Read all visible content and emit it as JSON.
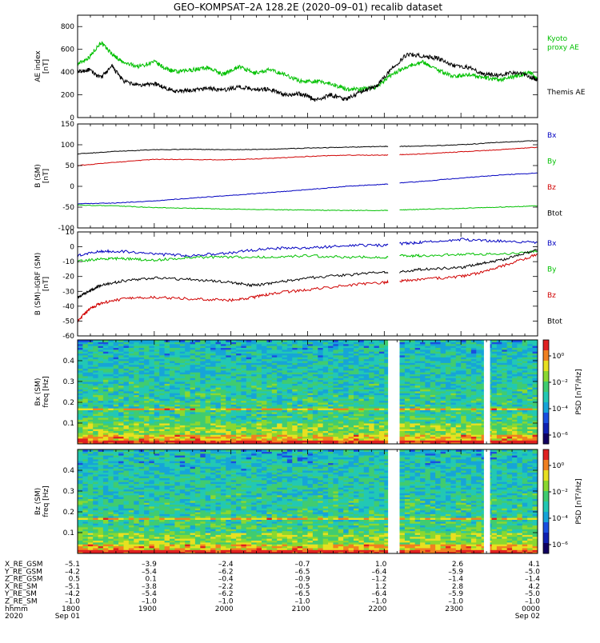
{
  "title": "GEO–KOMPSAT–2A 128.2E (2020–09–01) recalib dataset",
  "colors": {
    "black": "#000000",
    "red": "#d00000",
    "green": "#00c000",
    "blue": "#0000c0",
    "light_green": "#30e030"
  },
  "chart_data": [
    {
      "type": "line",
      "panel": "ae",
      "ylabel": [
        "AE index",
        "[nT]"
      ],
      "ylim": [
        0,
        900
      ],
      "yticks": [
        0,
        200,
        400,
        600,
        800
      ],
      "x_hours": [
        18,
        24
      ],
      "series": [
        {
          "name": "Kyoto proxy AE",
          "label_lines": [
            "Kyoto",
            "proxy AE"
          ],
          "color": "green",
          "x": [
            18.0,
            18.15,
            18.3,
            18.45,
            18.6,
            18.8,
            19.0,
            19.15,
            19.3,
            19.5,
            19.7,
            19.9,
            20.1,
            20.3,
            20.5,
            20.7,
            20.9,
            21.1,
            21.3,
            21.5,
            21.7,
            21.9,
            22.1,
            22.3,
            22.5,
            22.7,
            22.9,
            23.1,
            23.3,
            23.5,
            23.7,
            23.9,
            24.0
          ],
          "y": [
            470,
            530,
            660,
            560,
            480,
            450,
            490,
            430,
            400,
            420,
            440,
            380,
            450,
            390,
            420,
            380,
            320,
            320,
            300,
            250,
            250,
            270,
            380,
            450,
            490,
            420,
            360,
            380,
            350,
            330,
            360,
            400,
            330
          ]
        },
        {
          "name": "Themis AE",
          "label_lines": [
            "Themis AE"
          ],
          "color": "black",
          "x": [
            18.0,
            18.15,
            18.3,
            18.45,
            18.6,
            18.8,
            19.0,
            19.15,
            19.3,
            19.5,
            19.7,
            19.9,
            20.1,
            20.3,
            20.5,
            20.7,
            20.9,
            21.0,
            21.1,
            21.3,
            21.5,
            21.7,
            21.9,
            22.1,
            22.3,
            22.5,
            22.7,
            22.9,
            23.1,
            23.3,
            23.5,
            23.7,
            23.9,
            24.0
          ],
          "y": [
            400,
            420,
            350,
            450,
            320,
            280,
            300,
            260,
            230,
            240,
            260,
            240,
            270,
            250,
            250,
            200,
            210,
            190,
            150,
            200,
            160,
            230,
            280,
            430,
            560,
            540,
            520,
            460,
            440,
            380,
            370,
            400,
            360,
            330
          ]
        }
      ]
    },
    {
      "type": "line",
      "panel": "b_sm",
      "ylabel": [
        "B (SM)",
        "[nT]"
      ],
      "ylim": [
        -100,
        150
      ],
      "yticks": [
        -100,
        -50,
        0,
        50,
        100,
        150
      ],
      "gaps": [
        [
          22.05,
          22.2
        ]
      ],
      "series": [
        {
          "name": "Bx",
          "color": "blue",
          "x": [
            18.0,
            18.5,
            19.0,
            19.5,
            20.0,
            20.5,
            21.0,
            21.5,
            22.0,
            22.2,
            22.5,
            23.0,
            23.5,
            24.0
          ],
          "y": [
            -42,
            -40,
            -35,
            -28,
            -22,
            -15,
            -8,
            0,
            5,
            8,
            12,
            20,
            27,
            32
          ]
        },
        {
          "name": "By",
          "color": "green",
          "x": [
            18.0,
            18.5,
            19.0,
            19.5,
            20.0,
            20.5,
            21.0,
            21.5,
            22.0,
            22.2,
            22.5,
            23.0,
            23.5,
            24.0
          ],
          "y": [
            -45,
            -47,
            -51,
            -53,
            -55,
            -56,
            -57,
            -58,
            -58,
            -57,
            -55,
            -53,
            -50,
            -47
          ]
        },
        {
          "name": "Bz",
          "color": "red",
          "x": [
            18.0,
            18.5,
            19.0,
            19.5,
            20.0,
            20.5,
            21.0,
            21.5,
            22.0,
            22.2,
            22.5,
            23.0,
            23.5,
            24.0
          ],
          "y": [
            50,
            58,
            65,
            64,
            64,
            67,
            72,
            75,
            75,
            76,
            78,
            83,
            88,
            94
          ]
        },
        {
          "name": "Btot",
          "color": "black",
          "x": [
            18.0,
            18.5,
            19.0,
            19.5,
            20.0,
            20.5,
            21.0,
            21.5,
            22.0,
            22.2,
            22.5,
            23.0,
            23.5,
            24.0
          ],
          "y": [
            78,
            84,
            88,
            89,
            88,
            89,
            92,
            94,
            96,
            96,
            97,
            100,
            106,
            110
          ]
        }
      ]
    },
    {
      "type": "line",
      "panel": "b_igrf",
      "ylabel": [
        "B (SM)–IGRF (SM)",
        "[nT]"
      ],
      "ylim": [
        -60,
        10
      ],
      "yticks": [
        -60,
        -50,
        -40,
        -30,
        -20,
        -10,
        0,
        10
      ],
      "gaps": [
        [
          22.05,
          22.2
        ]
      ],
      "series": [
        {
          "name": "Bx",
          "color": "blue",
          "x": [
            18.0,
            18.3,
            18.6,
            19.0,
            19.5,
            20.0,
            20.5,
            21.0,
            21.5,
            22.0,
            22.2,
            22.5,
            23.0,
            23.5,
            24.0
          ],
          "y": [
            -6,
            -3,
            -3,
            -5,
            -6,
            -4,
            -1,
            -1,
            1,
            1,
            2,
            3,
            5,
            4,
            3
          ]
        },
        {
          "name": "By",
          "color": "green",
          "x": [
            18.0,
            18.3,
            18.6,
            19.0,
            19.5,
            20.0,
            20.5,
            21.0,
            21.5,
            22.0,
            22.2,
            22.5,
            23.0,
            23.5,
            24.0
          ],
          "y": [
            -10,
            -8,
            -8,
            -9,
            -7,
            -7,
            -7,
            -6,
            -7,
            -7,
            -6,
            -6,
            -5,
            -5,
            -3
          ]
        },
        {
          "name": "Bz",
          "color": "red",
          "x": [
            18.0,
            18.15,
            18.3,
            18.6,
            19.0,
            19.5,
            20.0,
            20.3,
            20.6,
            21.0,
            21.5,
            22.0,
            22.2,
            22.5,
            23.0,
            23.3,
            23.6,
            24.0
          ],
          "y": [
            -50,
            -42,
            -38,
            -35,
            -34,
            -35,
            -36,
            -34,
            -31,
            -29,
            -26,
            -24,
            -23,
            -22,
            -20,
            -17,
            -12,
            -5
          ]
        },
        {
          "name": "Btot",
          "color": "black",
          "x": [
            18.0,
            18.15,
            18.3,
            18.6,
            19.0,
            19.5,
            20.0,
            20.3,
            20.6,
            21.0,
            21.5,
            22.0,
            22.2,
            22.5,
            23.0,
            23.3,
            23.6,
            24.0
          ],
          "y": [
            -34,
            -30,
            -26,
            -23,
            -21,
            -22,
            -24,
            -26,
            -24,
            -21,
            -19,
            -17,
            -17,
            -15,
            -14,
            -11,
            -8,
            -2
          ]
        }
      ]
    },
    {
      "type": "heatmap",
      "panel": "bx_psd",
      "ylabel": [
        "Bx (SM)",
        "freq [Hz]"
      ],
      "ylim": [
        0,
        0.5
      ],
      "yticks": [
        0.1,
        0.2,
        0.3,
        0.4
      ],
      "gaps": [
        [
          22.05,
          22.2
        ],
        [
          23.3,
          23.38
        ]
      ],
      "band_hz": 0.17,
      "colorbar": {
        "label": "PSD [nT²/Hz]",
        "ticks": [
          "10⁰",
          "10⁻²",
          "10⁻⁴",
          "10⁻⁶"
        ]
      }
    },
    {
      "type": "heatmap",
      "panel": "bz_psd",
      "ylabel": [
        "Bz (SM)",
        "freq [Hz]"
      ],
      "ylim": [
        0,
        0.5
      ],
      "yticks": [
        0.1,
        0.2,
        0.3,
        0.4
      ],
      "gaps": [
        [
          22.05,
          22.2
        ],
        [
          23.3,
          23.38
        ]
      ],
      "band_hz": 0.17,
      "colorbar": {
        "label": "PSD [nT²/Hz]",
        "ticks": [
          "10⁰",
          "10⁻²",
          "10⁻⁴",
          "10⁻⁶"
        ]
      }
    }
  ],
  "ephemeris": {
    "rows": [
      {
        "label": "X_RE_GSM",
        "values": [
          "–5.1",
          "–3.9",
          "–2.4",
          "–0.7",
          "1.0",
          "2.6",
          "4.1"
        ]
      },
      {
        "label": "Y_RE_GSM",
        "values": [
          "–4.2",
          "–5.4",
          "–6.2",
          "–6.5",
          "–6.4",
          "–5.9",
          "–5.0"
        ]
      },
      {
        "label": "Z_RE_GSM",
        "values": [
          "0.5",
          "0.1",
          "–0.4",
          "–0.9",
          "–1.2",
          "–1.4",
          "–1.4"
        ]
      },
      {
        "label": "X_RE_SM",
        "values": [
          "–5.1",
          "–3.8",
          "–2.2",
          "–0.5",
          "1.2",
          "2.8",
          "4.2"
        ]
      },
      {
        "label": "Y_RE_SM",
        "values": [
          "–4.2",
          "–5.4",
          "–6.2",
          "–6.5",
          "–6.4",
          "–5.9",
          "–5.0"
        ]
      },
      {
        "label": "Z_RE_SM",
        "values": [
          "–1.0",
          "–1.0",
          "–1.0",
          "–1.0",
          "–1.0",
          "–1.0",
          "–1.0"
        ]
      },
      {
        "label": "hhmm",
        "values": [
          "1800",
          "1900",
          "2000",
          "2100",
          "2200",
          "2300",
          "0000"
        ]
      }
    ],
    "date_label": "2020",
    "start_date": "Sep 01",
    "end_date": "Sep 02"
  }
}
